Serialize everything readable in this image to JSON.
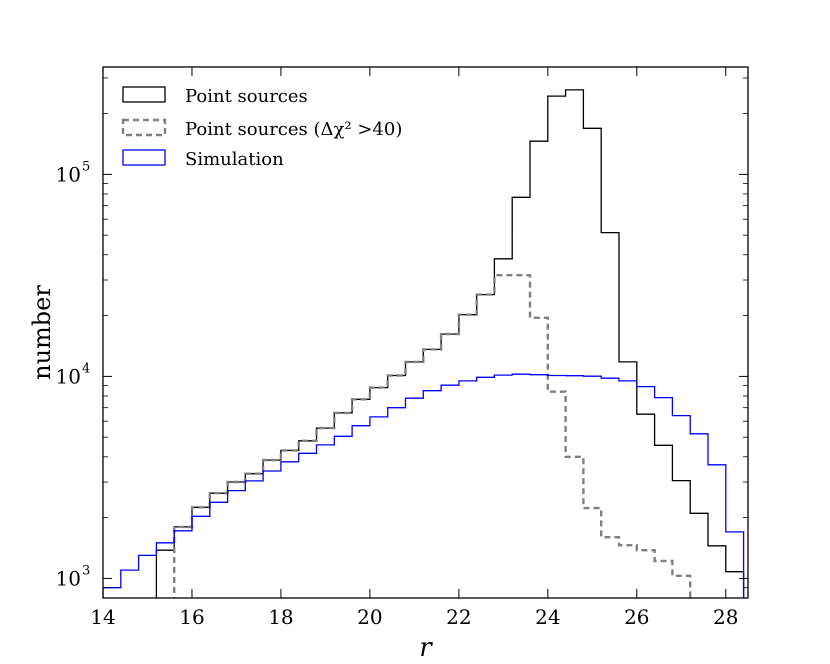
{
  "chart_data": {
    "type": "histogram",
    "xlabel": "r",
    "ylabel": "number",
    "xlim": [
      14,
      28.5
    ],
    "ylim": [
      800,
      340000
    ],
    "yscale": "log",
    "xticks": [
      14,
      16,
      18,
      20,
      22,
      24,
      26,
      28
    ],
    "yticks": [
      {
        "base": "10",
        "exp": "3",
        "value": 1000
      },
      {
        "base": "10",
        "exp": "4",
        "value": 10000
      },
      {
        "base": "10",
        "exp": "5",
        "value": 100000
      }
    ],
    "legend_position": "upper-left",
    "bin_edges": [
      14.0,
      14.4,
      14.8,
      15.2,
      15.6,
      16.0,
      16.4,
      16.8,
      17.2,
      17.6,
      18.0,
      18.4,
      18.8,
      19.2,
      19.6,
      20.0,
      20.4,
      20.8,
      21.2,
      21.6,
      22.0,
      22.4,
      22.8,
      23.2,
      23.6,
      24.0,
      24.4,
      24.8,
      25.2,
      25.6,
      26.0,
      26.4,
      26.8,
      27.2,
      27.6,
      28.0,
      28.4
    ],
    "series": [
      {
        "name": "Point sources",
        "color": "#000000",
        "dash": "none",
        "values": [
          null,
          null,
          null,
          1380,
          1800,
          2250,
          2640,
          3000,
          3300,
          3850,
          4300,
          4800,
          5550,
          6600,
          7700,
          8800,
          10100,
          11800,
          13600,
          16200,
          20200,
          25400,
          38200,
          77000,
          146000,
          244000,
          262000,
          169000,
          51500,
          11800,
          6500,
          4560,
          3050,
          2100,
          1450,
          1080,
          null
        ]
      },
      {
        "name": "Point sources (Δχ² >40)",
        "color": "#808080",
        "dash": "6,4",
        "values": [
          null,
          null,
          null,
          null,
          1800,
          2250,
          2640,
          3000,
          3300,
          3850,
          4300,
          4800,
          5550,
          6600,
          7700,
          8800,
          10100,
          11800,
          13600,
          16200,
          20200,
          25400,
          31700,
          31700,
          19500,
          8400,
          4000,
          2230,
          1600,
          1460,
          1380,
          1220,
          1030,
          null,
          null,
          null,
          null
        ]
      },
      {
        "name": "Simulation",
        "color": "#0000ff",
        "dash": "none",
        "values": [
          900,
          1100,
          1300,
          1500,
          1720,
          2030,
          2380,
          2720,
          3040,
          3400,
          3780,
          4160,
          4580,
          5050,
          5700,
          6300,
          7000,
          7800,
          8500,
          9050,
          9500,
          9900,
          10150,
          10250,
          10200,
          10100,
          10080,
          10020,
          9800,
          9500,
          8900,
          7850,
          6400,
          5200,
          3650,
          1700,
          null
        ]
      }
    ]
  }
}
